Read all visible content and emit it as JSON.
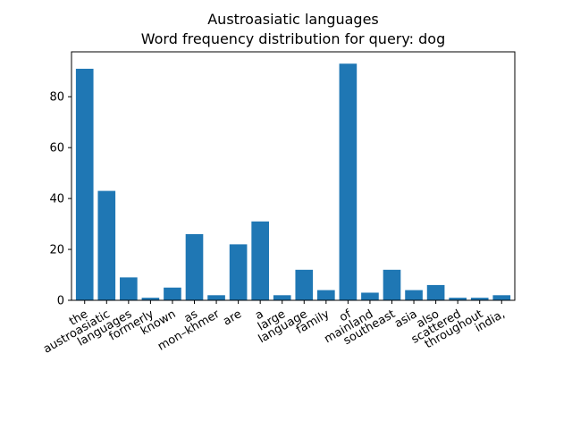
{
  "chart_data": {
    "type": "bar",
    "title": "Austroasiatic languages",
    "subtitle": "Word frequency distribution for query: dog",
    "xlabel": "",
    "ylabel": "",
    "categories": [
      "the",
      "austroasiatic",
      "languages",
      "formerly",
      "known",
      "as",
      "mon–khmer",
      "are",
      "a",
      "large",
      "language",
      "family",
      "of",
      "mainland",
      "southeast",
      "asia",
      "also",
      "scattered",
      "throughout",
      "india,"
    ],
    "values": [
      91,
      43,
      9,
      1,
      5,
      26,
      2,
      22,
      31,
      2,
      12,
      4,
      93,
      3,
      12,
      4,
      6,
      1,
      1,
      2
    ],
    "ylim": [
      0,
      97.65
    ],
    "yticks": [
      0,
      20,
      40,
      60,
      80
    ],
    "grid": false,
    "bar_color": "#1f77b4"
  }
}
